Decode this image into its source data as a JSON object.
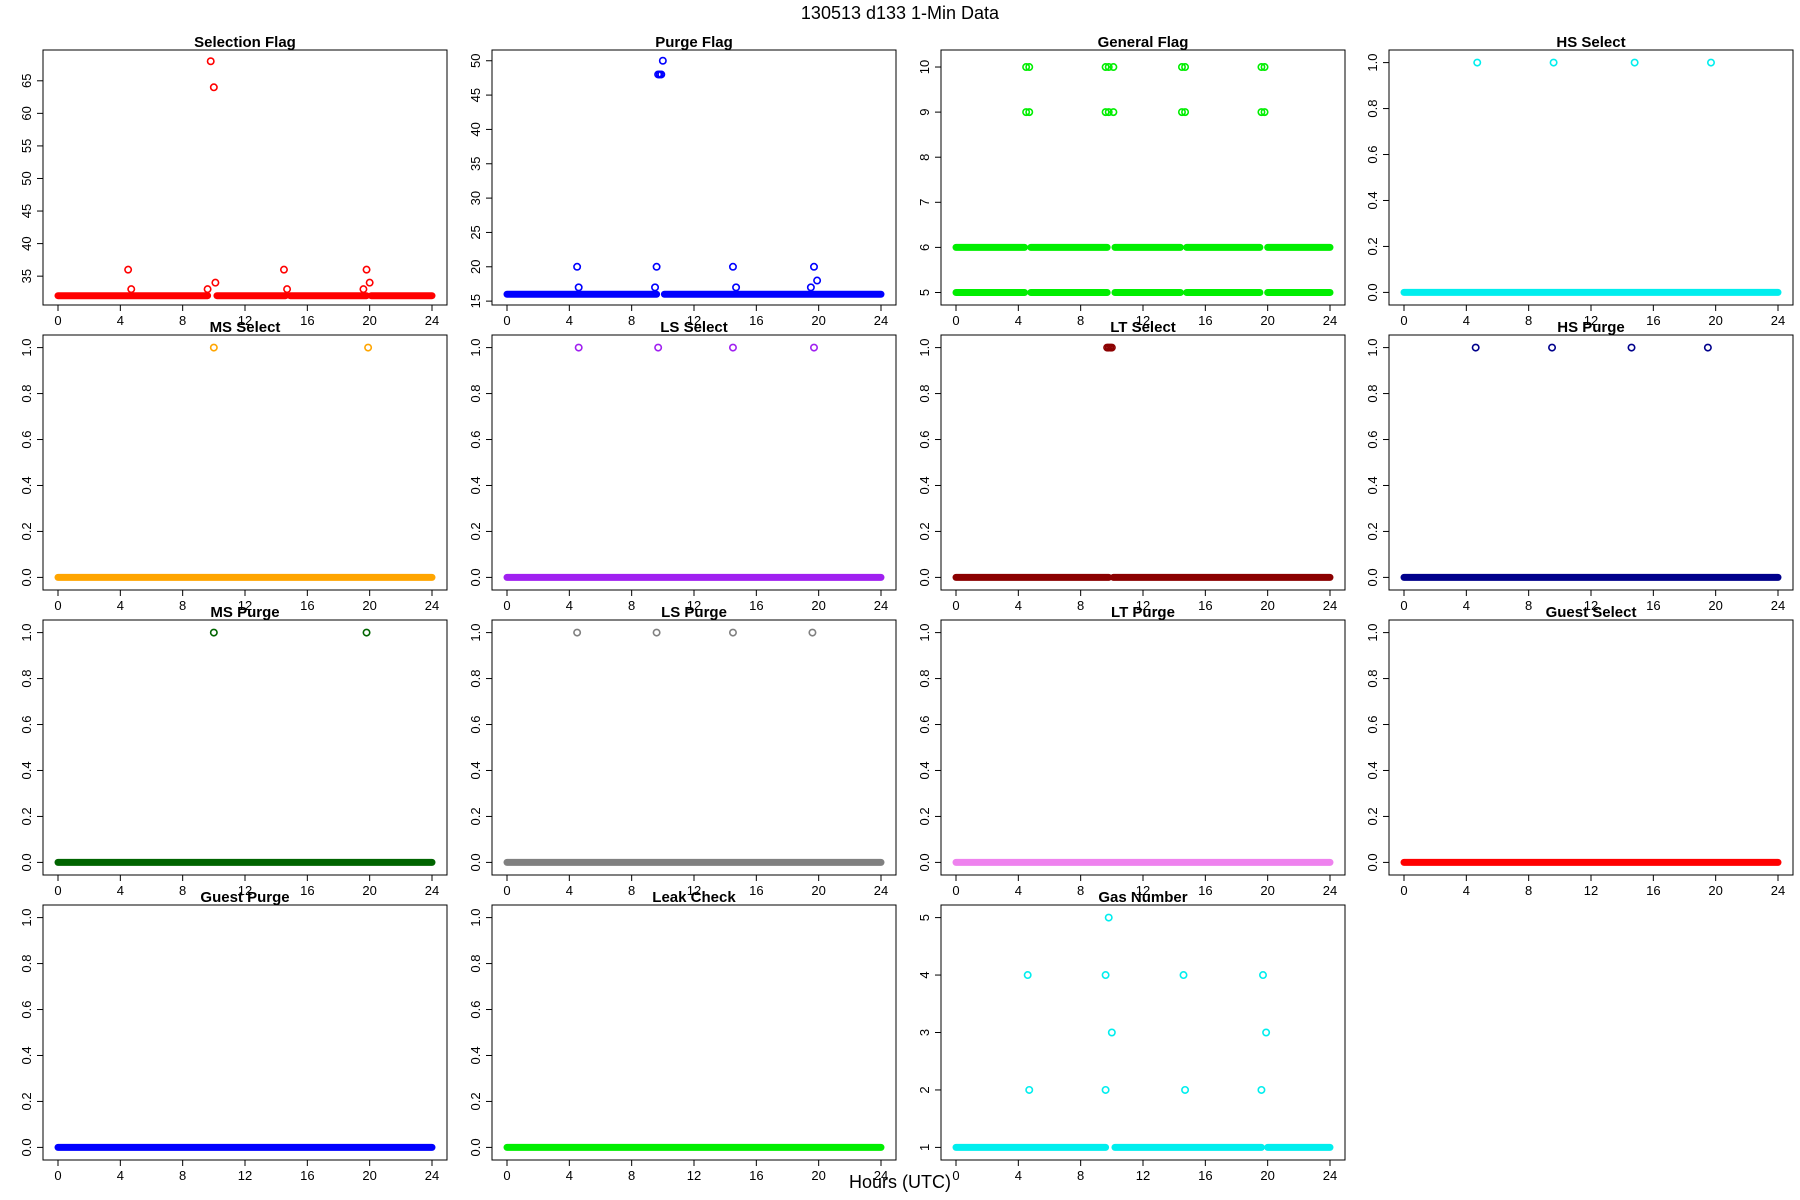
{
  "figure": {
    "title": "130513   d133   1-Min Data",
    "xlabel": "Hours (UTC)",
    "x_range": [
      0,
      24
    ],
    "x_ticks": [
      0,
      4,
      8,
      12,
      16,
      20,
      24
    ]
  },
  "chart_data": [
    {
      "type": "scatter",
      "title": "Selection Flag",
      "color": "#ff0000",
      "xlim": [
        0,
        24
      ],
      "ylim": [
        31.8,
        68.5
      ],
      "yticks": [
        35,
        40,
        45,
        50,
        55,
        60,
        65
      ],
      "baseline": [
        {
          "y": 32,
          "segments": [
            [
              0,
              9.6
            ],
            [
              10.2,
              14.6
            ],
            [
              14.9,
              19.8
            ],
            [
              20.1,
              24
            ]
          ]
        }
      ],
      "points": [
        [
          4.5,
          36
        ],
        [
          4.7,
          33
        ],
        [
          9.6,
          33
        ],
        [
          9.8,
          68
        ],
        [
          10.0,
          64
        ],
        [
          10.1,
          34
        ],
        [
          14.5,
          36
        ],
        [
          14.7,
          33
        ],
        [
          19.6,
          33
        ],
        [
          19.8,
          36
        ],
        [
          20.0,
          34
        ]
      ]
    },
    {
      "type": "scatter",
      "title": "Purge Flag",
      "color": "#0000ff",
      "xlim": [
        0,
        24
      ],
      "ylim": [
        15.6,
        50.4
      ],
      "yticks": [
        15,
        20,
        25,
        30,
        35,
        40,
        45,
        50
      ],
      "baseline": [
        {
          "y": 16,
          "segments": [
            [
              0,
              9.6
            ],
            [
              10.1,
              24
            ]
          ]
        }
      ],
      "points": [
        [
          4.5,
          20
        ],
        [
          4.6,
          17
        ],
        [
          9.5,
          17
        ],
        [
          9.6,
          20
        ],
        [
          9.7,
          48
        ],
        [
          9.8,
          48
        ],
        [
          9.9,
          48
        ],
        [
          10.0,
          50
        ],
        [
          14.5,
          20
        ],
        [
          14.7,
          17
        ],
        [
          19.5,
          17
        ],
        [
          19.7,
          20
        ],
        [
          19.9,
          18
        ]
      ]
    },
    {
      "type": "scatter",
      "title": "General Flag",
      "color": "#00ee00",
      "xlim": [
        0,
        24
      ],
      "ylim": [
        4.9,
        10.2
      ],
      "yticks": [
        5,
        6,
        7,
        8,
        9,
        10
      ],
      "baseline": [
        {
          "y": 5,
          "segments": [
            [
              0,
              4.4
            ],
            [
              4.8,
              9.7
            ],
            [
              10.2,
              14.4
            ],
            [
              14.8,
              19.5
            ],
            [
              20.0,
              24
            ]
          ]
        },
        {
          "y": 6,
          "segments": [
            [
              0,
              4.4
            ],
            [
              4.8,
              9.7
            ],
            [
              10.2,
              14.4
            ],
            [
              14.8,
              19.5
            ],
            [
              20.0,
              24
            ]
          ]
        }
      ],
      "points": [
        [
          4.5,
          10
        ],
        [
          4.7,
          10
        ],
        [
          4.5,
          9
        ],
        [
          4.7,
          9
        ],
        [
          9.6,
          10
        ],
        [
          9.8,
          10
        ],
        [
          10.1,
          10
        ],
        [
          9.6,
          9
        ],
        [
          9.8,
          9
        ],
        [
          10.1,
          9
        ],
        [
          14.5,
          10
        ],
        [
          14.7,
          10
        ],
        [
          14.5,
          9
        ],
        [
          14.7,
          9
        ],
        [
          19.6,
          10
        ],
        [
          19.8,
          10
        ],
        [
          19.6,
          9
        ],
        [
          19.8,
          9
        ]
      ]
    },
    {
      "type": "scatter",
      "title": "HS Select",
      "color": "#00eeee",
      "xlim": [
        0,
        24
      ],
      "ylim": [
        -0.02,
        1.02
      ],
      "yticks": [
        0.0,
        0.2,
        0.4,
        0.6,
        0.8,
        1.0
      ],
      "baseline": [
        {
          "y": 0,
          "segments": [
            [
              0,
              24
            ]
          ]
        }
      ],
      "points": [
        [
          4.7,
          1
        ],
        [
          9.6,
          1
        ],
        [
          14.8,
          1
        ],
        [
          19.7,
          1
        ]
      ]
    },
    {
      "type": "scatter",
      "title": "MS Select",
      "color": "#ffa500",
      "xlim": [
        0,
        24
      ],
      "ylim": [
        -0.02,
        1.02
      ],
      "yticks": [
        0.0,
        0.2,
        0.4,
        0.6,
        0.8,
        1.0
      ],
      "baseline": [
        {
          "y": 0,
          "segments": [
            [
              0,
              24
            ]
          ]
        }
      ],
      "points": [
        [
          10.0,
          1
        ],
        [
          19.9,
          1
        ]
      ]
    },
    {
      "type": "scatter",
      "title": "LS Select",
      "color": "#a020f0",
      "xlim": [
        0,
        24
      ],
      "ylim": [
        -0.02,
        1.02
      ],
      "yticks": [
        0.0,
        0.2,
        0.4,
        0.6,
        0.8,
        1.0
      ],
      "baseline": [
        {
          "y": 0,
          "segments": [
            [
              0,
              24
            ]
          ]
        }
      ],
      "points": [
        [
          4.6,
          1
        ],
        [
          9.7,
          1
        ],
        [
          14.5,
          1
        ],
        [
          19.7,
          1
        ]
      ]
    },
    {
      "type": "scatter",
      "title": "LT Select",
      "color": "#8b0000",
      "xlim": [
        0,
        24
      ],
      "ylim": [
        -0.02,
        1.02
      ],
      "yticks": [
        0.0,
        0.2,
        0.4,
        0.6,
        0.8,
        1.0
      ],
      "baseline": [
        {
          "y": 0,
          "segments": [
            [
              0,
              9.8
            ],
            [
              10.1,
              24
            ]
          ]
        }
      ],
      "points": [
        [
          9.7,
          1
        ],
        [
          9.8,
          1
        ],
        [
          9.9,
          1
        ],
        [
          10.0,
          1
        ]
      ]
    },
    {
      "type": "scatter",
      "title": "HS Purge",
      "color": "#00008b",
      "xlim": [
        0,
        24
      ],
      "ylim": [
        -0.02,
        1.02
      ],
      "yticks": [
        0.0,
        0.2,
        0.4,
        0.6,
        0.8,
        1.0
      ],
      "baseline": [
        {
          "y": 0,
          "segments": [
            [
              0,
              24
            ]
          ]
        }
      ],
      "points": [
        [
          4.6,
          1
        ],
        [
          9.5,
          1
        ],
        [
          14.6,
          1
        ],
        [
          19.5,
          1
        ]
      ]
    },
    {
      "type": "scatter",
      "title": "MS Purge",
      "color": "#006400",
      "xlim": [
        0,
        24
      ],
      "ylim": [
        -0.02,
        1.02
      ],
      "yticks": [
        0.0,
        0.2,
        0.4,
        0.6,
        0.8,
        1.0
      ],
      "baseline": [
        {
          "y": 0,
          "segments": [
            [
              0,
              24
            ]
          ]
        }
      ],
      "points": [
        [
          10.0,
          1
        ],
        [
          19.8,
          1
        ]
      ]
    },
    {
      "type": "scatter",
      "title": "LS Purge",
      "color": "#808080",
      "xlim": [
        0,
        24
      ],
      "ylim": [
        -0.02,
        1.02
      ],
      "yticks": [
        0.0,
        0.2,
        0.4,
        0.6,
        0.8,
        1.0
      ],
      "baseline": [
        {
          "y": 0,
          "segments": [
            [
              0,
              24
            ]
          ]
        }
      ],
      "points": [
        [
          4.5,
          1
        ],
        [
          9.6,
          1
        ],
        [
          14.5,
          1
        ],
        [
          19.6,
          1
        ]
      ]
    },
    {
      "type": "scatter",
      "title": "LT Purge",
      "color": "#ee82ee",
      "xlim": [
        0,
        24
      ],
      "ylim": [
        -0.02,
        1.02
      ],
      "yticks": [
        0.0,
        0.2,
        0.4,
        0.6,
        0.8,
        1.0
      ],
      "baseline": [
        {
          "y": 0,
          "segments": [
            [
              0,
              24
            ]
          ]
        }
      ],
      "points": []
    },
    {
      "type": "scatter",
      "title": "Guest Select",
      "color": "#ff0000",
      "xlim": [
        0,
        24
      ],
      "ylim": [
        -0.02,
        1.02
      ],
      "yticks": [
        0.0,
        0.2,
        0.4,
        0.6,
        0.8,
        1.0
      ],
      "baseline": [
        {
          "y": 0,
          "segments": [
            [
              0,
              24
            ]
          ]
        }
      ],
      "points": []
    },
    {
      "type": "scatter",
      "title": "Guest Purge",
      "color": "#0000ff",
      "xlim": [
        0,
        24
      ],
      "ylim": [
        -0.02,
        1.02
      ],
      "yticks": [
        0.0,
        0.2,
        0.4,
        0.6,
        0.8,
        1.0
      ],
      "baseline": [
        {
          "y": 0,
          "segments": [
            [
              0,
              24
            ]
          ]
        }
      ],
      "points": []
    },
    {
      "type": "scatter",
      "title": "Leak Check",
      "color": "#00ee00",
      "xlim": [
        0,
        24
      ],
      "ylim": [
        -0.02,
        1.02
      ],
      "yticks": [
        0.0,
        0.2,
        0.4,
        0.6,
        0.8,
        1.0
      ],
      "baseline": [
        {
          "y": 0,
          "segments": [
            [
              0,
              24
            ]
          ]
        }
      ],
      "points": []
    },
    {
      "type": "scatter",
      "title": "Gas Number",
      "color": "#00eeee",
      "xlim": [
        0,
        24
      ],
      "ylim": [
        0.92,
        5.08
      ],
      "yticks": [
        1,
        2,
        3,
        4,
        5
      ],
      "baseline": [
        {
          "y": 1,
          "segments": [
            [
              0,
              9.6
            ],
            [
              10.2,
              19.6
            ],
            [
              20.0,
              24
            ]
          ]
        }
      ],
      "points": [
        [
          4.6,
          4
        ],
        [
          4.7,
          2
        ],
        [
          9.6,
          4
        ],
        [
          9.6,
          2
        ],
        [
          9.8,
          5
        ],
        [
          10.0,
          3
        ],
        [
          14.6,
          4
        ],
        [
          14.7,
          2
        ],
        [
          19.6,
          2
        ],
        [
          19.7,
          4
        ],
        [
          19.9,
          3
        ]
      ]
    }
  ]
}
